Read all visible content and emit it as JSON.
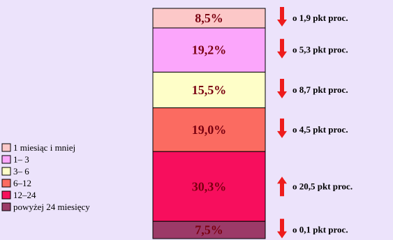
{
  "chart_data": {
    "type": "bar",
    "stacked": true,
    "series": [
      {
        "name": "1 miesiąc i mniej",
        "label": "1 miesiąc i mniej",
        "value": 8.5,
        "value_label": "8,5%",
        "change": "o 1,9 pkt proc.",
        "direction": "down",
        "color": "#fcc8c8"
      },
      {
        "name": "1– 3",
        "label": "1– 3",
        "value": 19.2,
        "value_label": "19,2%",
        "change": "o 5,3 pkt proc.",
        "direction": "down",
        "color": "#fba6fb"
      },
      {
        "name": "3– 6",
        "label": "3– 6",
        "value": 15.5,
        "value_label": "15,5%",
        "change": "o 8,7 pkt proc.",
        "direction": "down",
        "color": "#fefec8"
      },
      {
        "name": "6–12",
        "label": "6–12",
        "value": 19.0,
        "value_label": "19,0%",
        "change": "o 4,5 pkt proc.",
        "direction": "down",
        "color": "#fb6b61"
      },
      {
        "name": "12–24",
        "label": "12–24",
        "value": 30.3,
        "value_label": "30,3%",
        "change": "o 20,5 pkt proc.",
        "direction": "up",
        "color": "#f70e5d"
      },
      {
        "name": "powyżej 24 miesięcy",
        "label": "powyżej 24 miesięcy",
        "value": 7.5,
        "value_label": "7,5%",
        "change": "o 0,1 pkt proc.",
        "direction": "down",
        "color": "#9c3a68"
      }
    ],
    "arrow_color": "#ee1c1c",
    "label_color": "#7a0010",
    "background": "#ece3fb"
  }
}
